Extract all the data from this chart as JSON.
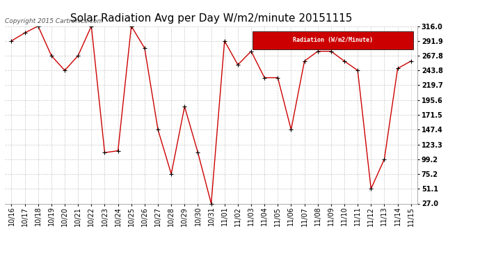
{
  "title": "Solar Radiation Avg per Day W/m2/minute 20151115",
  "copyright": "Copyright 2015 Cartronics.com",
  "legend_label": "Radiation (W/m2/Minute)",
  "legend_bg": "#cc0000",
  "legend_text_color": "#ffffff",
  "line_color": "#cc0000",
  "marker_color": "#000000",
  "bg_color": "#ffffff",
  "plot_bg_color": "#ffffff",
  "grid_color": "#bbbbbb",
  "title_color": "#000000",
  "dates": [
    "10/16",
    "10/17",
    "10/18",
    "10/19",
    "10/20",
    "10/21",
    "10/22",
    "10/23",
    "10/24",
    "10/25",
    "10/26",
    "10/27",
    "10/28",
    "10/29",
    "10/30",
    "10/31",
    "11/01",
    "11/02",
    "11/03",
    "11/04",
    "11/05",
    "11/06",
    "11/07",
    "11/08",
    "11/09",
    "11/10",
    "11/11",
    "11/12",
    "11/13",
    "11/14",
    "11/15"
  ],
  "values": [
    291.9,
    305.0,
    316.0,
    267.8,
    243.8,
    267.8,
    316.0,
    110.0,
    113.0,
    316.0,
    280.0,
    147.4,
    75.2,
    185.0,
    110.0,
    27.0,
    291.9,
    253.0,
    275.0,
    232.0,
    232.0,
    147.4,
    259.0,
    275.0,
    275.0,
    259.0,
    243.8,
    51.1,
    99.2,
    247.0,
    259.0
  ],
  "yticks": [
    27.0,
    51.1,
    75.2,
    99.2,
    123.3,
    147.4,
    171.5,
    195.6,
    219.7,
    243.8,
    267.8,
    291.9,
    316.0
  ],
  "ymin": 27.0,
  "ymax": 316.0,
  "title_fontsize": 11,
  "tick_fontsize": 7,
  "copyright_fontsize": 6.5
}
